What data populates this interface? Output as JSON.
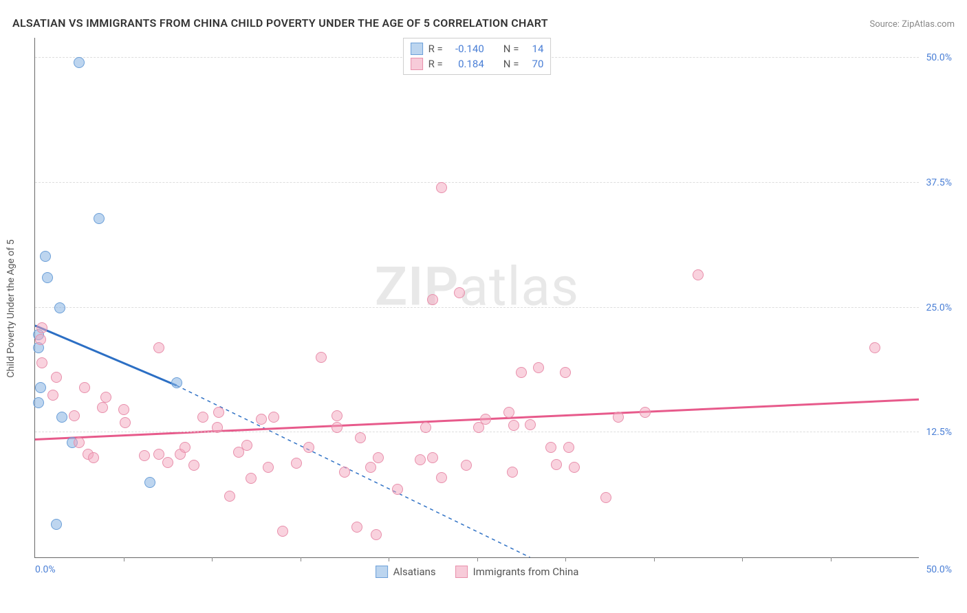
{
  "header": {
    "title": "ALSATIAN VS IMMIGRANTS FROM CHINA CHILD POVERTY UNDER THE AGE OF 5 CORRELATION CHART",
    "source": "Source: ZipAtlas.com"
  },
  "watermark": {
    "part1": "ZIP",
    "part2": "atlas"
  },
  "chart": {
    "type": "scatter",
    "ylabel": "Child Poverty Under the Age of 5",
    "xlim": [
      0,
      50
    ],
    "ylim": [
      0,
      52
    ],
    "xtick_positions": [
      5,
      10,
      15,
      20,
      25,
      30,
      35,
      40,
      45
    ],
    "xaxis_start_label": "0.0%",
    "xaxis_end_label": "50.0%",
    "yticks": [
      {
        "value": 12.5,
        "label": "12.5%"
      },
      {
        "value": 25.0,
        "label": "25.0%"
      },
      {
        "value": 37.5,
        "label": "37.5%"
      },
      {
        "value": 50.0,
        "label": "50.0%"
      }
    ],
    "grid_color": "#dddddd",
    "background_color": "#ffffff",
    "series": [
      {
        "name": "Alsatians",
        "point_fill": "rgba(135,178,226,0.55)",
        "point_stroke": "#6b9fd8",
        "line_color": "#2c6fc4",
        "r_label": "R =",
        "r_value": "-0.140",
        "n_label": "N =",
        "n_value": "14",
        "swatch_fill": "#bcd5ef",
        "swatch_border": "#6b9fd8",
        "trend": {
          "x1": 0,
          "y1": 23.2,
          "x2_solid": 8,
          "y2_solid": 17.2,
          "x2_dash": 28,
          "y2_dash": 0
        },
        "marker_radius": 8,
        "points": [
          [
            2.5,
            49.5
          ],
          [
            3.6,
            33.9
          ],
          [
            0.6,
            30.1
          ],
          [
            0.7,
            28.0
          ],
          [
            1.4,
            25.0
          ],
          [
            8.0,
            17.5
          ],
          [
            0.2,
            22.3
          ],
          [
            1.5,
            14.0
          ],
          [
            2.1,
            11.5
          ],
          [
            6.5,
            7.5
          ],
          [
            1.2,
            3.3
          ],
          [
            0.2,
            21.0
          ],
          [
            0.3,
            17.0
          ],
          [
            0.2,
            15.5
          ]
        ]
      },
      {
        "name": "Immigrants from China",
        "point_fill": "rgba(244,166,189,0.5)",
        "point_stroke": "#e88fab",
        "line_color": "#e75a8b",
        "r_label": "R =",
        "r_value": "0.184",
        "n_label": "N =",
        "n_value": "70",
        "swatch_fill": "#f7cbd9",
        "swatch_border": "#e88fab",
        "trend": {
          "x1": 0,
          "y1": 11.8,
          "x2_solid": 50,
          "y2_solid": 15.8
        },
        "marker_radius": 8,
        "points": [
          [
            23.0,
            37.0
          ],
          [
            37.5,
            28.3
          ],
          [
            47.5,
            21.0
          ],
          [
            22.5,
            25.8
          ],
          [
            24.0,
            26.5
          ],
          [
            27.5,
            18.5
          ],
          [
            30.0,
            18.5
          ],
          [
            16.2,
            20.0
          ],
          [
            7.0,
            21.0
          ],
          [
            0.3,
            21.8
          ],
          [
            0.4,
            23.0
          ],
          [
            0.4,
            19.5
          ],
          [
            1.2,
            18.0
          ],
          [
            1.0,
            16.2
          ],
          [
            2.8,
            17.0
          ],
          [
            2.2,
            14.2
          ],
          [
            3.8,
            15.0
          ],
          [
            4.0,
            16.0
          ],
          [
            5.0,
            14.8
          ],
          [
            5.1,
            13.5
          ],
          [
            6.2,
            10.2
          ],
          [
            7.0,
            10.3
          ],
          [
            7.5,
            9.5
          ],
          [
            8.2,
            10.3
          ],
          [
            8.5,
            11.0
          ],
          [
            9.0,
            9.2
          ],
          [
            9.5,
            14.0
          ],
          [
            10.3,
            13.0
          ],
          [
            10.4,
            14.5
          ],
          [
            11.0,
            6.1
          ],
          [
            11.5,
            10.5
          ],
          [
            12.0,
            11.2
          ],
          [
            12.2,
            7.9
          ],
          [
            12.8,
            13.8
          ],
          [
            13.2,
            9.0
          ],
          [
            13.5,
            14.0
          ],
          [
            14.0,
            2.6
          ],
          [
            14.8,
            9.4
          ],
          [
            15.5,
            11.0
          ],
          [
            17.1,
            14.2
          ],
          [
            17.1,
            13.0
          ],
          [
            17.5,
            8.5
          ],
          [
            18.2,
            3.0
          ],
          [
            18.4,
            12.0
          ],
          [
            19.0,
            9.0
          ],
          [
            19.3,
            2.3
          ],
          [
            19.4,
            10.0
          ],
          [
            20.5,
            6.8
          ],
          [
            21.8,
            9.8
          ],
          [
            22.1,
            13.0
          ],
          [
            22.5,
            10.0
          ],
          [
            23.0,
            8.0
          ],
          [
            24.4,
            9.2
          ],
          [
            25.1,
            13.0
          ],
          [
            25.5,
            13.8
          ],
          [
            26.8,
            14.5
          ],
          [
            27.0,
            8.5
          ],
          [
            27.1,
            13.2
          ],
          [
            28.0,
            13.3
          ],
          [
            28.5,
            19.0
          ],
          [
            29.2,
            11.0
          ],
          [
            29.5,
            9.3
          ],
          [
            30.2,
            11.0
          ],
          [
            30.5,
            9.0
          ],
          [
            32.3,
            6.0
          ],
          [
            33.0,
            14.0
          ],
          [
            34.5,
            14.5
          ],
          [
            3.0,
            10.3
          ],
          [
            3.3,
            10.0
          ],
          [
            2.5,
            11.5
          ]
        ]
      }
    ],
    "legend_bottom": [
      {
        "label": "Alsatians",
        "swatch_fill": "#bcd5ef",
        "swatch_border": "#6b9fd8"
      },
      {
        "label": "Immigrants from China",
        "swatch_fill": "#f7cbd9",
        "swatch_border": "#e88fab"
      }
    ]
  }
}
